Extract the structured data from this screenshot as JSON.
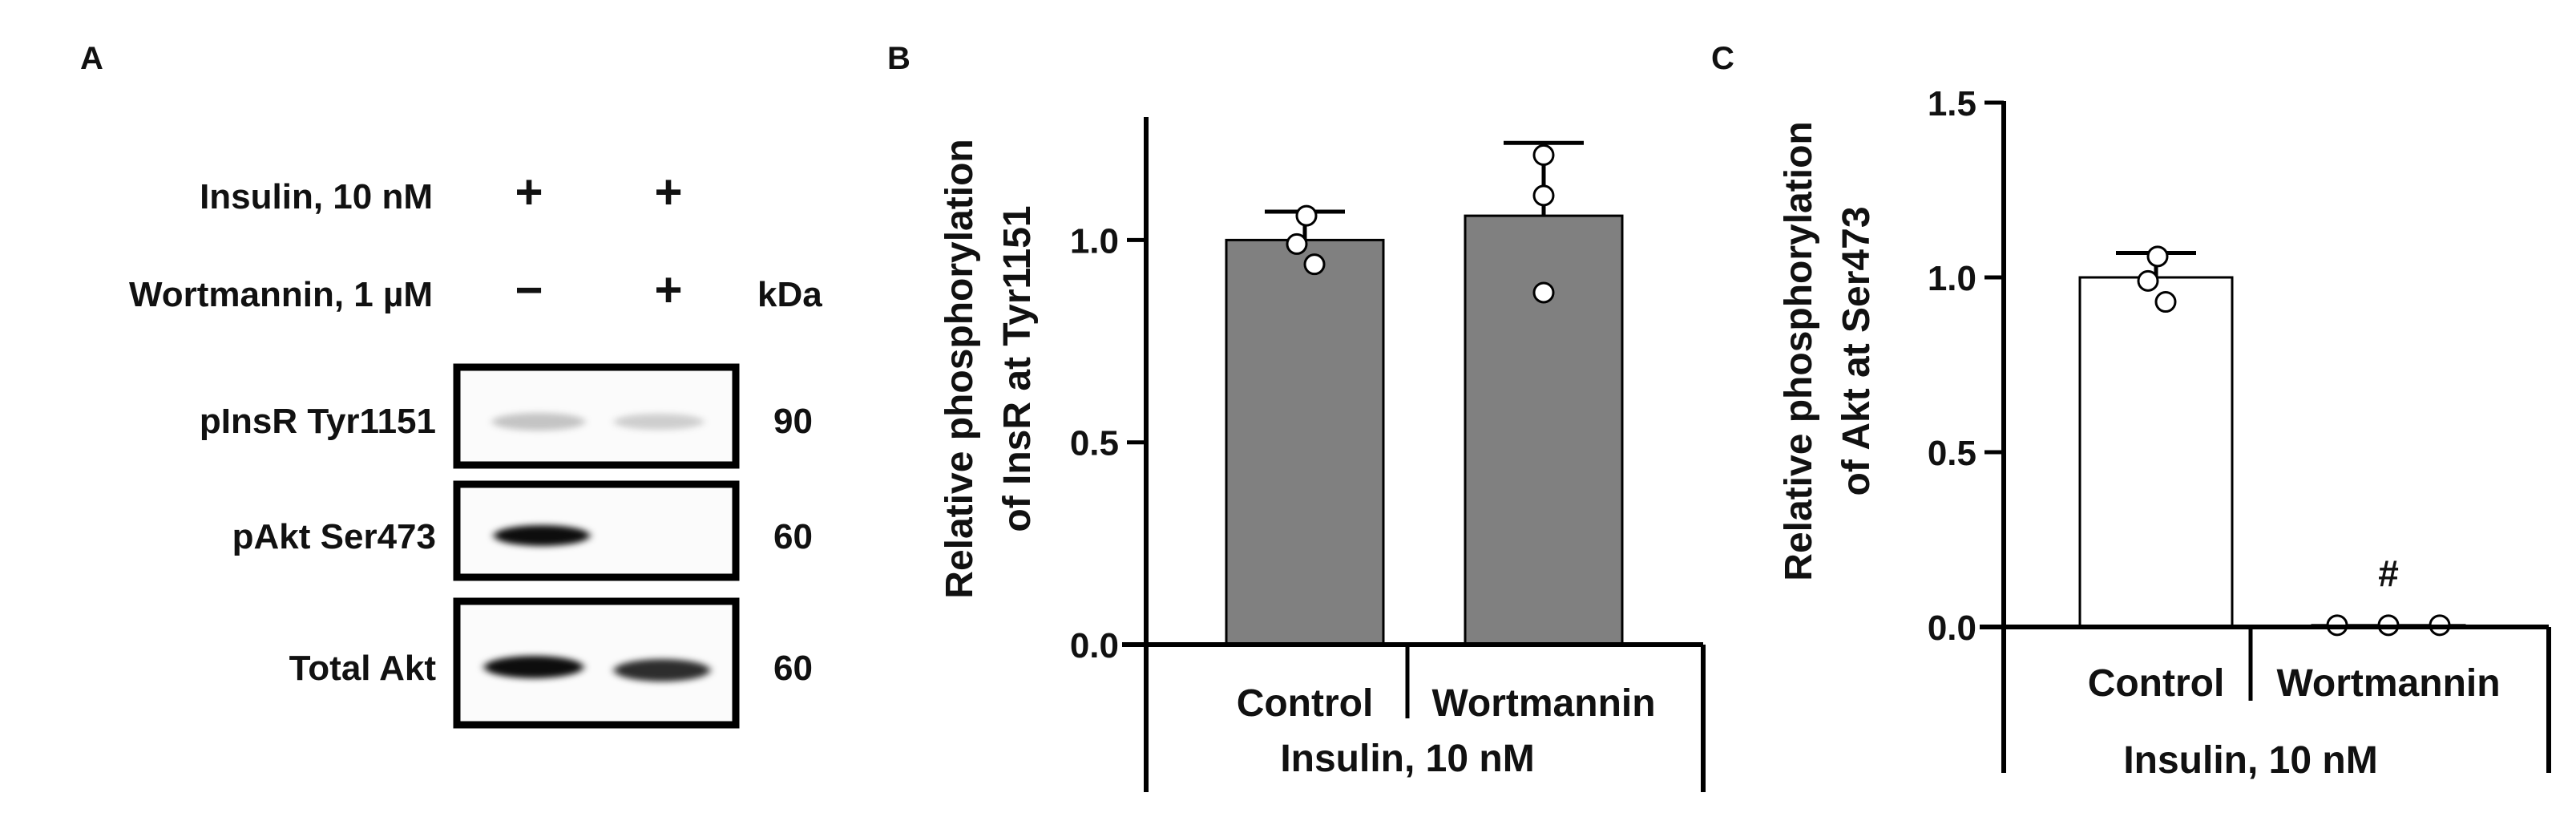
{
  "panels": {
    "a": {
      "letter": "A"
    },
    "b": {
      "letter": "B"
    },
    "c": {
      "letter": "C"
    }
  },
  "blot": {
    "treatments": [
      {
        "label": "Insulin, 10 nM",
        "lane1": "+",
        "lane2": "+"
      },
      {
        "label": "Wortmannin, 1 µM",
        "lane1": "−",
        "lane2": "+"
      }
    ],
    "unit_header": "kDa",
    "rows": [
      {
        "label": "pInsR Tyr1151",
        "kda": "90",
        "intensity": [
          0.22,
          0.18
        ]
      },
      {
        "label": "pAkt Ser473",
        "kda": "60",
        "intensity": [
          0.95,
          0.0
        ]
      },
      {
        "label": "Total Akt",
        "kda": "60",
        "intensity": [
          0.95,
          0.82
        ]
      }
    ]
  },
  "chart_data": [
    {
      "panel": "B",
      "type": "bar",
      "ylabel_line1": "Relative phosphorylation",
      "ylabel_line2": "of InsR at Tyr1151",
      "ylim": [
        0,
        1.3
      ],
      "yticks": [
        0.0,
        0.5,
        1.0
      ],
      "ytick_labels": [
        "0.0",
        "0.5",
        "1.0"
      ],
      "categories": [
        "Control",
        "Wortmannin"
      ],
      "group_label": "Insulin, 10 nM",
      "bar_color": "#808080",
      "values": [
        1.0,
        1.06
      ],
      "sd": [
        0.07,
        0.18
      ],
      "points": [
        [
          1.06,
          0.99,
          0.94
        ],
        [
          1.21,
          1.11,
          0.87
        ]
      ]
    },
    {
      "panel": "C",
      "type": "bar",
      "ylabel_line1": "Relative phosphorylation",
      "ylabel_line2": "of Akt at Ser473",
      "ylim": [
        0,
        1.5
      ],
      "yticks": [
        0.0,
        0.5,
        1.0,
        1.5
      ],
      "ytick_labels": [
        "0.0",
        "0.5",
        "1.0",
        "1.5"
      ],
      "categories": [
        "Control",
        "Wortmannin"
      ],
      "group_label": "Insulin, 10 nM",
      "bar_color": "#ffffff",
      "values": [
        1.0,
        0.005
      ],
      "sd": [
        0.07,
        0.0
      ],
      "points": [
        [
          1.06,
          0.99,
          0.93
        ],
        [
          0.005,
          0.005,
          0.005
        ]
      ],
      "annotation": "#"
    }
  ]
}
